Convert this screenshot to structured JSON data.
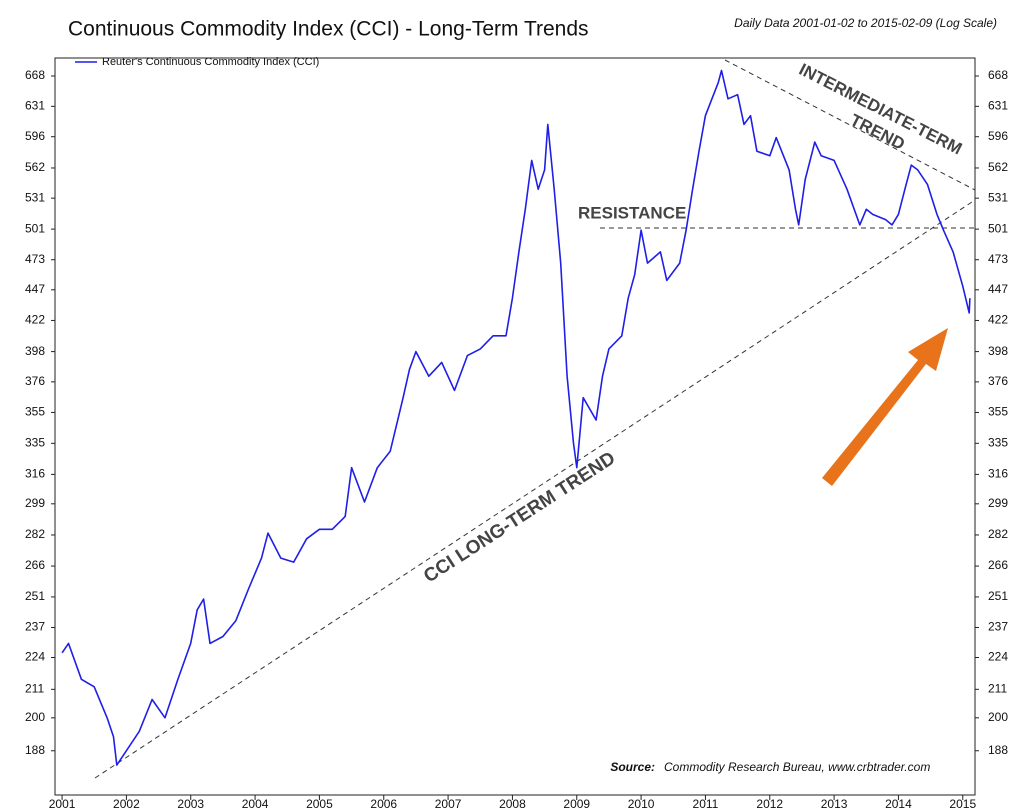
{
  "chart_data": {
    "type": "line",
    "title": "Continuous Commodity Index (CCI) - Long-Term Trends",
    "subtitle": "Daily Data 2001-01-02 to 2015-02-09 (Log Scale)",
    "annotations": [
      "RESISTANCE",
      "INTERMEDIATE-TERM",
      "TREND",
      "CCI LONG-TERM TREND"
    ],
    "source_label": "Source:",
    "source": "Commodity Research Bureau, www.crbtrader.com",
    "log_scale": true,
    "legend": "upper left",
    "xlim": [
      2000.89,
      2015.19
    ],
    "xticks": [
      2001,
      2002,
      2003,
      2004,
      2005,
      2006,
      2007,
      2008,
      2009,
      2010,
      2011,
      2012,
      2013,
      2014,
      2015
    ],
    "ylim": [
      173,
      691
    ],
    "yticks": [
      188,
      200,
      211,
      224,
      237,
      251,
      266,
      282,
      299,
      316,
      335,
      355,
      376,
      398,
      422,
      447,
      473,
      501,
      531,
      562,
      596,
      631,
      668
    ],
    "x": [
      2001.0,
      2001.1,
      2001.3,
      2001.5,
      2001.7,
      2001.8,
      2001.85,
      2002.0,
      2002.2,
      2002.4,
      2002.6,
      2002.8,
      2003.0,
      2003.1,
      2003.2,
      2003.3,
      2003.5,
      2003.7,
      2003.9,
      2004.1,
      2004.2,
      2004.4,
      2004.6,
      2004.8,
      2005.0,
      2005.2,
      2005.4,
      2005.5,
      2005.7,
      2005.9,
      2006.1,
      2006.3,
      2006.4,
      2006.5,
      2006.7,
      2006.9,
      2007.1,
      2007.3,
      2007.5,
      2007.7,
      2007.9,
      2008.0,
      2008.1,
      2008.2,
      2008.3,
      2008.4,
      2008.5,
      2008.55,
      2008.65,
      2008.75,
      2008.85,
      2008.95,
      2009.0,
      2009.1,
      2009.3,
      2009.4,
      2009.5,
      2009.7,
      2009.8,
      2009.9,
      2010.0,
      2010.1,
      2010.3,
      2010.4,
      2010.6,
      2010.7,
      2010.8,
      2010.9,
      2011.0,
      2011.2,
      2011.25,
      2011.35,
      2011.5,
      2011.6,
      2011.7,
      2011.8,
      2012.0,
      2012.1,
      2012.3,
      2012.4,
      2012.45,
      2012.55,
      2012.7,
      2012.8,
      2013.0,
      2013.2,
      2013.4,
      2013.5,
      2013.6,
      2013.8,
      2013.9,
      2014.0,
      2014.1,
      2014.2,
      2014.3,
      2014.45,
      2014.6,
      2014.7,
      2014.85,
      2015.0,
      2015.1,
      2015.11
    ],
    "series": [
      {
        "name": "Reuter's Continuous Commodity Index (CCI)",
        "color": "#1f1fe8",
        "values": [
          226,
          230,
          215,
          212,
          200,
          193,
          183,
          188,
          195,
          207,
          200,
          215,
          230,
          245,
          250,
          230,
          233,
          240,
          255,
          270,
          283,
          270,
          268,
          280,
          285,
          285,
          292,
          320,
          300,
          320,
          330,
          365,
          385,
          398,
          380,
          390,
          370,
          395,
          400,
          410,
          410,
          440,
          480,
          520,
          570,
          540,
          560,
          610,
          540,
          470,
          380,
          335,
          320,
          365,
          350,
          380,
          400,
          410,
          440,
          460,
          500,
          470,
          480,
          455,
          470,
          500,
          540,
          580,
          620,
          660,
          675,
          640,
          645,
          610,
          620,
          580,
          575,
          595,
          560,
          520,
          505,
          550,
          590,
          575,
          570,
          540,
          505,
          520,
          515,
          510,
          505,
          515,
          540,
          565,
          560,
          545,
          515,
          500,
          480,
          450,
          428,
          440
        ]
      }
    ]
  }
}
